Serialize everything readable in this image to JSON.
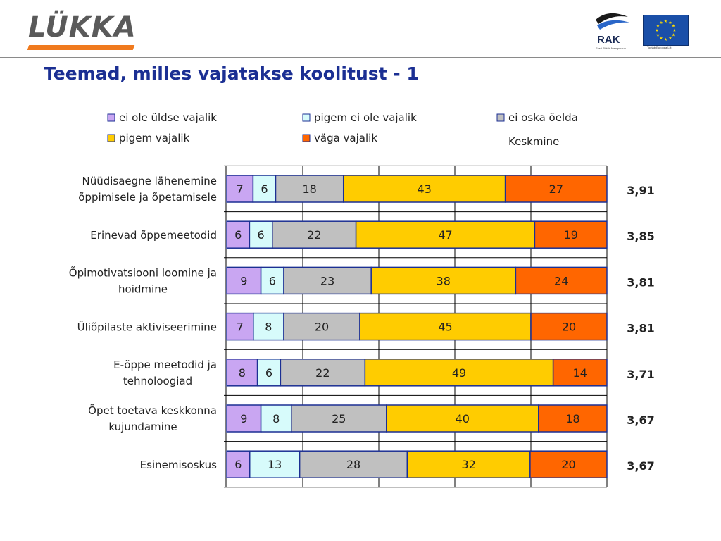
{
  "header": {
    "logo_text": "LÜKKA",
    "rak_label": "RAK",
    "rak_sub": "Eesti Riiklik Arengukava",
    "eu_sub": "Toetab Euroopa Liit"
  },
  "title": "Teemad, milles vajatakse koolitust - 1",
  "colors": {
    "ei_ole": "#c9a6f2",
    "pigem_ei": "#d7fbfb",
    "ei_oska": "#c0c0c0",
    "pigem_vajalik": "#ffcc00",
    "vaga_vajalik": "#ff6600",
    "title": "#1b2f93",
    "logo_orange": "#f07a1e"
  },
  "chart_data": {
    "type": "bar",
    "stacked": true,
    "orientation": "horizontal",
    "percent_scale": [
      0,
      100
    ],
    "grid": true,
    "legend_placement": "top",
    "legend": [
      "ei ole üldse vajalik",
      "pigem ei ole vajalik",
      "ei oska öelda",
      "pigem vajalik",
      "väga vajalik"
    ],
    "mean_header": "Keskmine",
    "categories": [
      [
        "Nüüdisaegne lähenemine",
        "õppimisele ja õpetamisele"
      ],
      [
        "Erinevad õppemeetodid"
      ],
      [
        "Õpimotivatsiooni loomine ja",
        "hoidmine"
      ],
      [
        "Üliõpilaste aktiviseerimine"
      ],
      [
        "E-õppe meetodid ja",
        "tehnoloogiad"
      ],
      [
        "Õpet toetava keskkonna",
        "kujundamine"
      ],
      [
        "Esinemisoskus"
      ]
    ],
    "series": [
      {
        "name": "ei ole üldse vajalik",
        "values": [
          7,
          6,
          9,
          7,
          8,
          9,
          6
        ]
      },
      {
        "name": "pigem ei ole vajalik",
        "values": [
          6,
          6,
          6,
          8,
          6,
          8,
          13
        ]
      },
      {
        "name": "ei oska öelda",
        "values": [
          18,
          22,
          23,
          20,
          22,
          25,
          28
        ]
      },
      {
        "name": "pigem vajalik",
        "values": [
          43,
          47,
          38,
          45,
          49,
          40,
          32
        ]
      },
      {
        "name": "väga vajalik",
        "values": [
          27,
          19,
          24,
          20,
          14,
          18,
          20
        ]
      }
    ],
    "means": [
      "3,91",
      "3,85",
      "3,81",
      "3,81",
      "3,71",
      "3,67",
      "3,67"
    ]
  }
}
